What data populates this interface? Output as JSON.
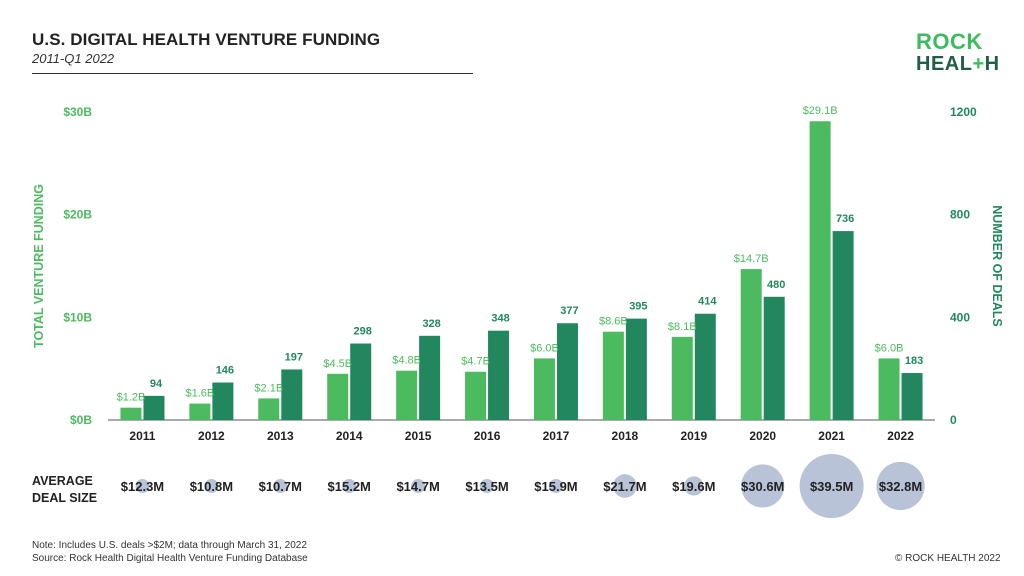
{
  "header": {
    "title": "U.S. DIGITAL HEALTH VENTURE FUNDING",
    "subtitle": "2011-Q1 2022"
  },
  "logo": {
    "line1": "ROCK",
    "line2_start": "HEAL",
    "line2_plus": "+",
    "line2_end": "H"
  },
  "colors": {
    "funding": "#4cbb5f",
    "deals": "#22875e",
    "bubble": "#b9c3d8",
    "deals_axis": "#22875e",
    "funding_axis": "#4cbb5f"
  },
  "chart_data": {
    "type": "bar",
    "categories": [
      "2011",
      "2012",
      "2013",
      "2014",
      "2015",
      "2016",
      "2017",
      "2018",
      "2019",
      "2020",
      "2021",
      "2022"
    ],
    "series": [
      {
        "name": "Total Venture Funding",
        "axis": "left",
        "values": [
          1.2,
          1.6,
          2.1,
          4.5,
          4.8,
          4.7,
          6.0,
          8.6,
          8.1,
          14.7,
          29.1,
          6.0
        ],
        "labels": [
          "$1.2B",
          "$1.6B",
          "$2.1B",
          "$4.5B",
          "$4.8B",
          "$4.7B",
          "$6.0B",
          "$8.6B",
          "$8.1B",
          "$14.7B",
          "$29.1B",
          "$6.0B"
        ]
      },
      {
        "name": "Number of Deals",
        "axis": "right",
        "values": [
          94,
          146,
          197,
          298,
          328,
          348,
          377,
          395,
          414,
          480,
          736,
          183
        ],
        "labels": [
          "94",
          "146",
          "197",
          "298",
          "328",
          "348",
          "377",
          "395",
          "414",
          "480",
          "736",
          "183"
        ]
      }
    ],
    "y_left": {
      "label": "TOTAL VENTURE FUNDING",
      "ticks": [
        "$0B",
        "$10B",
        "$20B",
        "$30B"
      ],
      "lim": [
        0,
        30
      ]
    },
    "y_right": {
      "label": "NUMBER OF DEALS",
      "ticks": [
        "0",
        "400",
        "800",
        "1200"
      ],
      "lim": [
        0,
        1200
      ]
    },
    "grid": false,
    "average_deal_size": {
      "label_line1": "AVERAGE",
      "label_line2": "DEAL SIZE",
      "values": [
        12.3,
        10.8,
        10.7,
        15.2,
        14.7,
        13.5,
        15.9,
        21.7,
        19.6,
        30.6,
        39.5,
        32.8
      ],
      "labels": [
        "$12.3M",
        "$10.8M",
        "$10.7M",
        "$15.2M",
        "$14.7M",
        "$13.5M",
        "$15.9M",
        "$21.7M",
        "$19.6M",
        "$30.6M",
        "$39.5M",
        "$32.8M"
      ]
    }
  },
  "footer": {
    "note": "Note: Includes U.S. deals >$2M; data through March 31, 2022",
    "source": "Source: Rock Health Digital Health Venture Funding Database",
    "copyright": "© ROCK HEALTH 2022"
  }
}
